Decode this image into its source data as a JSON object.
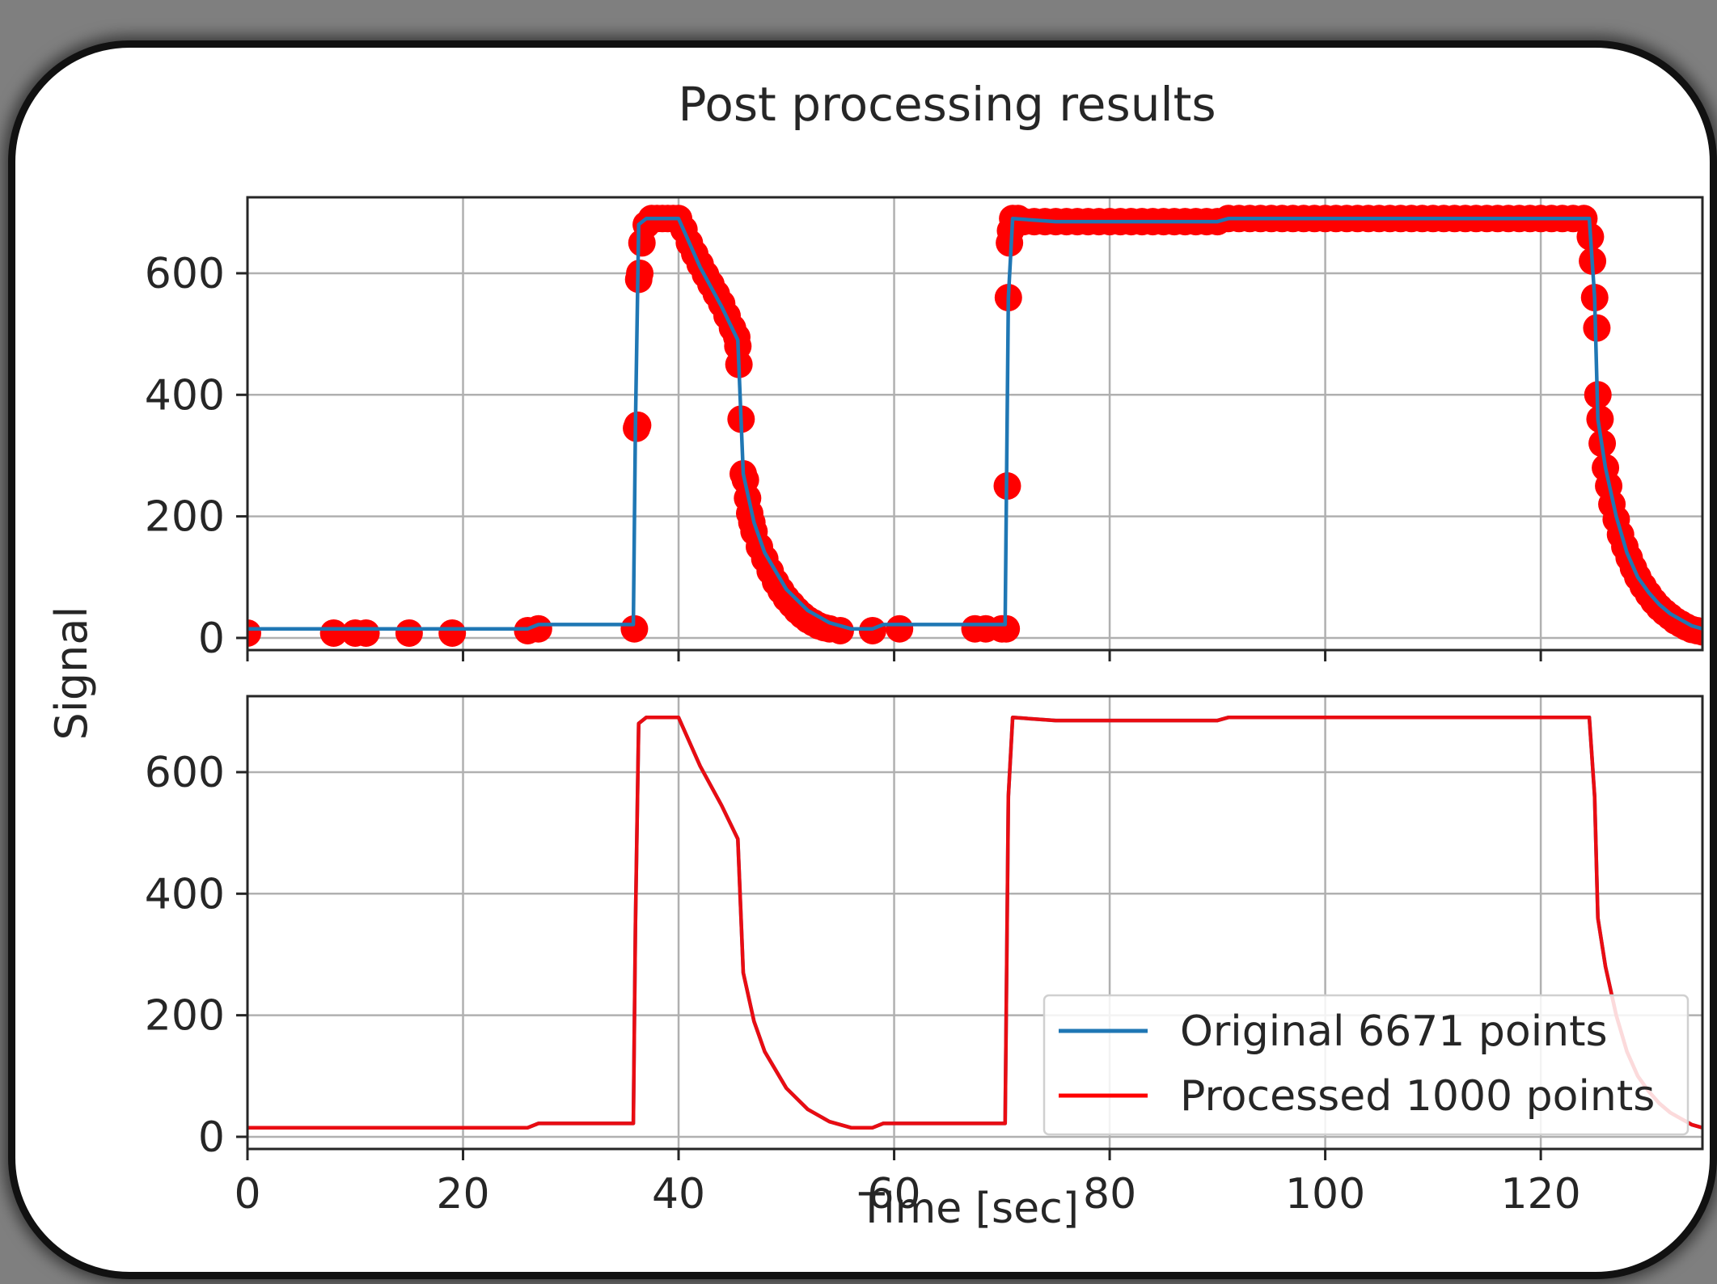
{
  "chart_data": {
    "type": "line",
    "title": "Post processing results",
    "xlabel": "Time [sec]",
    "ylabel": "Signal",
    "xlim": [
      0,
      135
    ],
    "ylim": [
      -20,
      725
    ],
    "xticks": [
      0,
      20,
      40,
      60,
      80,
      100,
      120
    ],
    "yticks": [
      0,
      200,
      400,
      600
    ],
    "grid": true,
    "colors": {
      "original": "#1f77b4",
      "processed": "#ff0000"
    },
    "panels": [
      {
        "position": "top",
        "series": [
          "original",
          "processed-markers"
        ],
        "legend": false
      },
      {
        "position": "bottom",
        "series": [
          "original",
          "processed"
        ],
        "legend": true,
        "legend_location": "lower-right"
      }
    ],
    "series": [
      {
        "key": "original",
        "name": "Original 6671 points",
        "color": "#1f77b4",
        "x": [
          0,
          10,
          20,
          26,
          27,
          35.8,
          36.0,
          36.3,
          37,
          40,
          42,
          44,
          45.5,
          46,
          47,
          48,
          50,
          52,
          54,
          56,
          58,
          59,
          70.3,
          70.6,
          71,
          75,
          90,
          91,
          124.5,
          125,
          125.3,
          126,
          127,
          128,
          129,
          130,
          131,
          132,
          133,
          134,
          135
        ],
        "y": [
          15,
          15,
          15,
          15,
          22,
          22,
          350,
          680,
          690,
          690,
          610,
          545,
          490,
          270,
          190,
          140,
          80,
          45,
          25,
          15,
          15,
          22,
          22,
          560,
          690,
          685,
          685,
          690,
          690,
          560,
          360,
          280,
          200,
          140,
          100,
          75,
          55,
          40,
          30,
          20,
          15
        ]
      },
      {
        "key": "processed",
        "name": "Processed 1000 points",
        "color": "#ff0000",
        "x": [
          0,
          10,
          20,
          26,
          27,
          35.8,
          36.0,
          36.3,
          37,
          40,
          42,
          44,
          45.5,
          46,
          47,
          48,
          50,
          52,
          54,
          56,
          58,
          59,
          70.3,
          70.6,
          71,
          75,
          90,
          91,
          124.5,
          125,
          125.3,
          126,
          127,
          128,
          129,
          130,
          131,
          132,
          133,
          134,
          135
        ],
        "y": [
          15,
          15,
          15,
          15,
          22,
          22,
          350,
          680,
          690,
          690,
          610,
          545,
          490,
          270,
          190,
          140,
          80,
          45,
          25,
          15,
          15,
          22,
          22,
          560,
          690,
          685,
          685,
          690,
          690,
          560,
          360,
          280,
          200,
          140,
          100,
          75,
          55,
          40,
          30,
          20,
          15
        ]
      }
    ],
    "markers": {
      "name": "Processed 1000 points",
      "color": "#ff0000",
      "x": [
        0,
        8,
        10,
        11,
        15,
        19,
        26,
        27,
        35.9,
        36.1,
        36.2,
        36.3,
        36.4,
        36.6,
        37.0,
        37.5,
        38.0,
        38.5,
        39.0,
        39.5,
        40.0,
        40.5,
        41.0,
        41.5,
        42.0,
        42.5,
        43.0,
        43.5,
        44.0,
        44.5,
        45.0,
        45.4,
        45.5,
        45.6,
        45.8,
        46.0,
        46.2,
        46.4,
        46.6,
        46.8,
        47.0,
        47.5,
        48.0,
        48.5,
        49.0,
        49.5,
        50.0,
        50.5,
        51.0,
        51.5,
        52.0,
        52.5,
        53.0,
        53.5,
        54.0,
        55.0,
        58.0,
        60.5,
        67.5,
        68.5,
        70.0,
        70.4,
        70.5,
        70.6,
        70.7,
        70.8,
        71.0,
        71.5,
        72,
        73,
        74,
        75,
        76,
        77,
        78,
        79,
        80,
        81,
        82,
        83,
        84,
        85,
        86,
        87,
        88,
        89,
        90,
        91,
        92,
        93,
        94,
        95,
        96,
        97,
        98,
        99,
        100,
        101,
        102,
        103,
        104,
        105,
        106,
        107,
        108,
        109,
        110,
        111,
        112,
        113,
        114,
        115,
        116,
        117,
        118,
        119,
        120,
        121,
        122,
        123,
        124,
        124.6,
        124.8,
        125.0,
        125.2,
        125.3,
        125.5,
        125.7,
        126.0,
        126.3,
        126.6,
        127.0,
        127.4,
        127.8,
        128.2,
        128.6,
        129.0,
        129.5,
        130.0,
        130.5,
        131.0,
        131.5,
        132.0,
        132.5,
        133.0,
        133.5,
        134.0,
        134.5,
        135.0
      ],
      "y": [
        8,
        8,
        8,
        8,
        8,
        8,
        12,
        15,
        15,
        345,
        350,
        590,
        600,
        650,
        680,
        690,
        690,
        690,
        690,
        690,
        690,
        672,
        650,
        632,
        615,
        598,
        582,
        566,
        550,
        530,
        510,
        495,
        480,
        450,
        360,
        270,
        260,
        230,
        205,
        190,
        175,
        150,
        130,
        110,
        92,
        78,
        65,
        55,
        45,
        37,
        30,
        25,
        20,
        17,
        15,
        12,
        12,
        15,
        15,
        15,
        15,
        15,
        250,
        560,
        650,
        670,
        690,
        690,
        685,
        685,
        685,
        685,
        685,
        685,
        685,
        685,
        685,
        685,
        685,
        685,
        685,
        685,
        685,
        685,
        685,
        685,
        685,
        690,
        690,
        690,
        690,
        690,
        690,
        690,
        690,
        690,
        690,
        690,
        690,
        690,
        690,
        690,
        690,
        690,
        690,
        690,
        690,
        690,
        690,
        690,
        690,
        690,
        690,
        690,
        690,
        690,
        690,
        690,
        690,
        690,
        690,
        660,
        620,
        560,
        510,
        400,
        360,
        320,
        280,
        250,
        220,
        195,
        170,
        150,
        132,
        115,
        100,
        85,
        72,
        60,
        50,
        42,
        35,
        28,
        23,
        18,
        14,
        12,
        10
      ]
    }
  }
}
